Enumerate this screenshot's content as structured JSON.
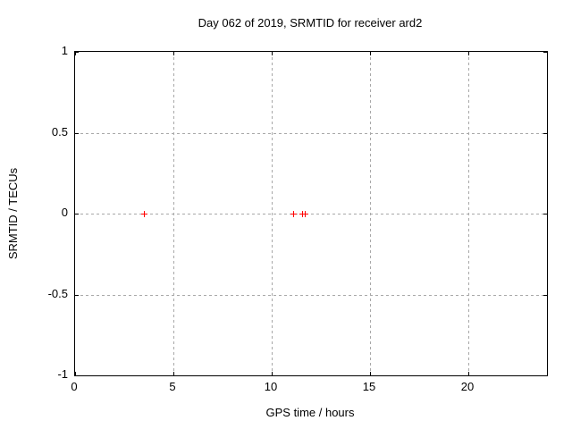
{
  "chart_data": {
    "type": "scatter",
    "title": "Day 062 of 2019, SRMTID for receiver ard2",
    "xlabel": "GPS time / hours",
    "ylabel": "SRMTID / TECUs",
    "xlim": [
      0,
      24
    ],
    "ylim": [
      -1,
      1
    ],
    "x_ticks": [
      0,
      5,
      10,
      15,
      20
    ],
    "y_ticks": [
      1,
      0.5,
      0,
      -0.5,
      -1
    ],
    "grid": true,
    "legend": false,
    "series": [
      {
        "name": "SRMTID",
        "marker": "plus",
        "color": "#ff0000",
        "points": [
          [
            3.5,
            0
          ],
          [
            11.1,
            0
          ],
          [
            11.55,
            0
          ],
          [
            11.7,
            0
          ]
        ]
      }
    ]
  },
  "colors": {
    "marker": "#ff0000",
    "grid": "#a8a8a8",
    "border": "#000000",
    "background": "#ffffff",
    "text": "#000000"
  }
}
